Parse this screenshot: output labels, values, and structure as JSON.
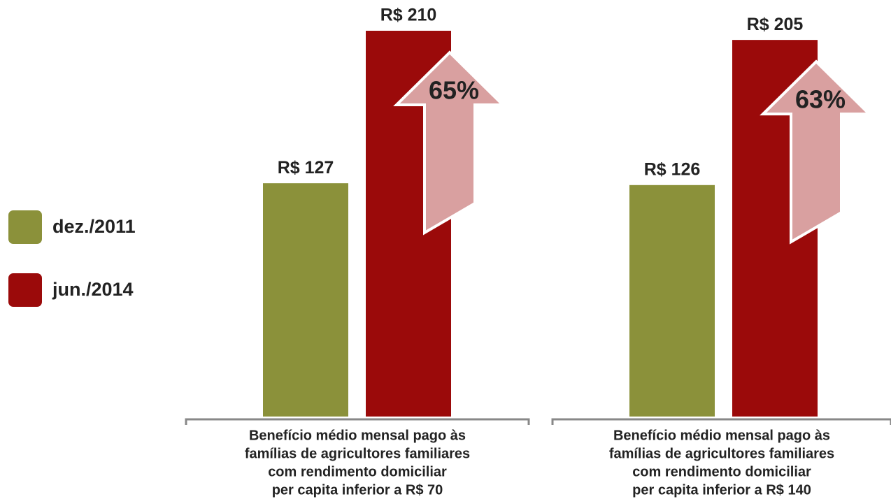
{
  "chart_data": {
    "type": "bar",
    "categories": [
      [
        "Benefício médio mensal pago às",
        "famílias de agricultores familiares",
        "com rendimento domiciliar",
        "per capita inferior a R$ 70"
      ],
      [
        "Benefício médio mensal pago às",
        "famílias de agricultores familiares",
        "com rendimento domiciliar",
        "per capita inferior a R$ 140"
      ]
    ],
    "series": [
      {
        "name": "dez./2011",
        "color": "#8b913a",
        "values": [
          127,
          126
        ],
        "value_labels": [
          "R$ 127",
          "R$ 126"
        ]
      },
      {
        "name": "jun./2014",
        "color": "#9b0a0a",
        "values": [
          210,
          205
        ],
        "value_labels": [
          "R$ 210",
          "R$ 205"
        ]
      }
    ],
    "annotations": [
      "65%",
      "63%"
    ],
    "ylim": [
      0,
      210
    ],
    "legend": "left"
  }
}
